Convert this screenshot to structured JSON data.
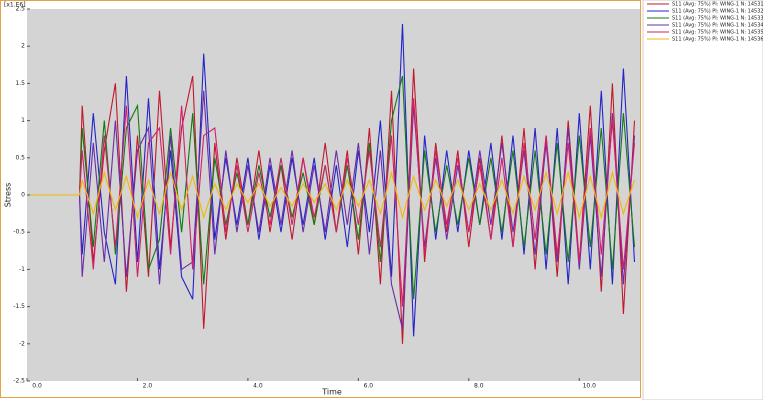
{
  "chart_data": {
    "type": "line",
    "x_label": "Time",
    "y_label": "Stress",
    "y_unit": "[x1.E6]",
    "xlim": [
      0,
      11.1
    ],
    "ylim": [
      -2.5,
      2.5
    ],
    "xticks": [
      {
        "value": 0,
        "label": "0.0"
      },
      {
        "value": 2,
        "label": "2.0"
      },
      {
        "value": 4,
        "label": "4.0"
      },
      {
        "value": 6,
        "label": "6.0"
      },
      {
        "value": 8,
        "label": "8.0"
      },
      {
        "value": 10,
        "label": "10.0"
      }
    ],
    "yticks": [
      -2.5,
      -2,
      -1.5,
      -1,
      -0.5,
      0,
      0.5,
      1,
      1.5,
      2,
      2.5
    ],
    "legend": "right",
    "x": [
      0,
      0.95,
      1.0,
      1.2,
      1.4,
      1.6,
      1.8,
      2.0,
      2.2,
      2.4,
      2.6,
      2.8,
      3.0,
      3.2,
      3.4,
      3.6,
      3.8,
      4.0,
      4.2,
      4.4,
      4.6,
      4.8,
      5.0,
      5.2,
      5.4,
      5.6,
      5.8,
      6.0,
      6.2,
      6.4,
      6.6,
      6.8,
      7.0,
      7.2,
      7.4,
      7.6,
      7.8,
      8.0,
      8.2,
      8.4,
      8.6,
      8.8,
      9.0,
      9.2,
      9.4,
      9.6,
      9.8,
      10.0,
      10.2,
      10.4,
      10.6,
      10.8,
      11.0
    ],
    "series": [
      {
        "name": "S11 (Avg: 75%) PI: WING-1 N: 14531",
        "color": "#c0182e",
        "values": [
          0,
          0,
          1.2,
          -0.9,
          0.6,
          1.5,
          -1.3,
          0.8,
          -1.1,
          1.4,
          -0.7,
          0.9,
          1.6,
          -1.8,
          0.7,
          -0.6,
          0.5,
          -0.4,
          0.6,
          -0.5,
          0.4,
          -0.6,
          0.5,
          -0.4,
          0.7,
          -0.5,
          0.6,
          -0.8,
          0.9,
          -1.2,
          1.4,
          -2.0,
          1.7,
          -0.9,
          0.7,
          -0.5,
          0.6,
          -0.7,
          0.5,
          -0.6,
          0.8,
          -0.7,
          0.9,
          -1.0,
          0.8,
          -1.1,
          1.0,
          -0.9,
          1.2,
          -1.3,
          1.5,
          -1.6,
          1.0
        ]
      },
      {
        "name": "S11 (Avg: 75%) PI: WING-1 N: 14532",
        "color": "#2424c8",
        "values": [
          0,
          0,
          -0.8,
          1.1,
          -0.5,
          -1.2,
          1.6,
          -0.9,
          1.3,
          -1.0,
          0.6,
          -1.1,
          -1.4,
          1.9,
          -0.6,
          0.5,
          -0.4,
          0.5,
          -0.6,
          0.4,
          -0.5,
          0.5,
          -0.4,
          0.5,
          -0.6,
          0.4,
          -0.7,
          0.6,
          -0.5,
          1.0,
          -1.1,
          2.3,
          -1.9,
          0.8,
          -0.6,
          0.6,
          -0.5,
          0.6,
          -0.4,
          0.7,
          -0.6,
          0.8,
          -0.8,
          0.9,
          -1.0,
          0.9,
          -1.2,
          1.1,
          -1.0,
          1.4,
          -1.2,
          1.7,
          -0.9
        ]
      },
      {
        "name": "S11 (Avg: 75%) PI: WING-1 N: 14533",
        "color": "#137a13",
        "values": [
          0,
          0,
          0.9,
          -0.7,
          1.0,
          -0.8,
          0.9,
          1.2,
          -1.0,
          -0.6,
          0.9,
          -0.5,
          1.1,
          -1.2,
          0.5,
          -0.4,
          0.3,
          -0.4,
          0.4,
          -0.3,
          0.4,
          -0.3,
          0.3,
          -0.4,
          0.4,
          -0.5,
          0.4,
          -0.6,
          0.7,
          -0.9,
          1.0,
          1.6,
          -1.4,
          0.6,
          -0.5,
          0.4,
          -0.4,
          0.5,
          -0.4,
          0.5,
          -0.5,
          0.6,
          -0.7,
          0.6,
          -0.8,
          0.7,
          -0.9,
          0.8,
          -0.7,
          0.9,
          -1.0,
          1.1,
          -0.7
        ]
      },
      {
        "name": "S11 (Avg: 75%) PI: WING-1 N: 14534",
        "color": "#6a2ca8",
        "values": [
          0,
          0,
          -1.1,
          0.7,
          -0.9,
          1.0,
          -1.1,
          0.6,
          0.9,
          -1.2,
          0.8,
          -1.0,
          -0.9,
          1.4,
          -0.8,
          0.6,
          -0.5,
          0.4,
          -0.5,
          0.5,
          -0.4,
          0.6,
          -0.5,
          0.4,
          -0.5,
          0.6,
          -0.4,
          0.7,
          -0.8,
          0.6,
          -1.2,
          -1.8,
          1.2,
          -0.7,
          0.5,
          -0.6,
          0.4,
          -0.5,
          0.6,
          -0.4,
          0.7,
          -0.5,
          0.6,
          -0.8,
          0.7,
          -0.9,
          0.9,
          -1.0,
          0.8,
          -1.1,
          1.1,
          -1.2,
          0.8
        ]
      },
      {
        "name": "S11 (Avg: 75%) PI: WING-1 N: 14535",
        "color": "#d0206a",
        "values": [
          0,
          0,
          0.6,
          -1.0,
          0.8,
          -0.7,
          1.2,
          -1.1,
          0.7,
          0.9,
          -0.8,
          1.2,
          -1.0,
          0.8,
          0.9,
          -0.5,
          0.4,
          -0.5,
          0.3,
          -0.4,
          0.5,
          -0.4,
          0.5,
          -0.3,
          0.4,
          -0.5,
          0.5,
          -0.4,
          0.6,
          -0.7,
          0.8,
          -1.5,
          1.3,
          -0.8,
          0.6,
          -0.4,
          0.5,
          -0.5,
          0.4,
          -0.6,
          0.5,
          -0.7,
          0.7,
          -0.6,
          0.8,
          -0.8,
          0.7,
          -0.9,
          0.9,
          -0.8,
          1.0,
          -1.0,
          0.7
        ]
      },
      {
        "name": "S11 (Avg: 75%) PI: WING-1 N: 14536",
        "color": "#f2b705",
        "values": [
          0,
          0,
          0.2,
          -0.25,
          0.3,
          -0.2,
          0.25,
          -0.3,
          0.2,
          -0.25,
          0.3,
          -0.2,
          0.25,
          -0.3,
          0.15,
          -0.2,
          0.15,
          -0.1,
          0.15,
          -0.15,
          0.1,
          -0.15,
          0.15,
          -0.1,
          0.15,
          -0.2,
          0.2,
          -0.15,
          0.2,
          -0.25,
          0.3,
          -0.3,
          0.25,
          -0.2,
          0.2,
          -0.15,
          0.2,
          -0.2,
          0.15,
          -0.2,
          0.2,
          -0.25,
          0.25,
          -0.2,
          0.3,
          -0.25,
          0.3,
          -0.3,
          0.25,
          -0.3,
          0.3,
          -0.25,
          0.2
        ]
      }
    ]
  }
}
